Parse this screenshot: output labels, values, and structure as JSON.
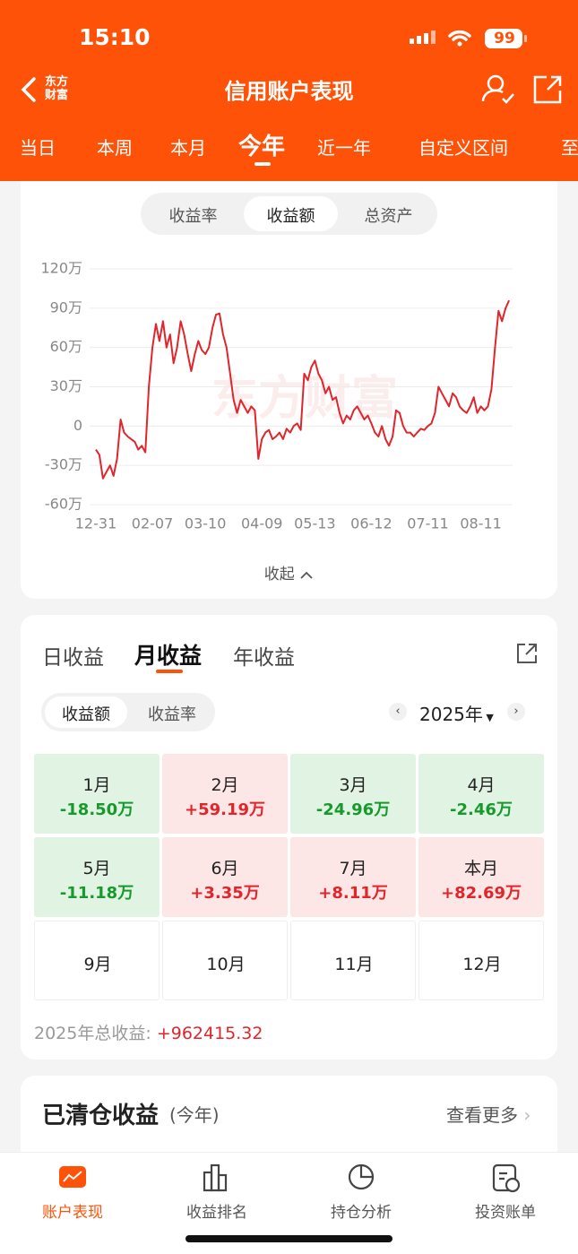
{
  "status_bar": {
    "time": "15:10",
    "battery": "99"
  },
  "nav": {
    "logo": "东方财富",
    "title": "信用账户表现"
  },
  "period_tabs": {
    "items": [
      "当日",
      "本周",
      "本月",
      "今年",
      "近一年",
      "自定义区间",
      "至"
    ],
    "active": 3
  },
  "metric_toggle": {
    "items": [
      "收益率",
      "收益额",
      "总资产"
    ],
    "active": 1
  },
  "chart_data": {
    "type": "line",
    "watermark": "东方财富",
    "x": [
      0,
      1,
      2,
      3,
      4,
      5,
      6,
      7,
      8,
      9,
      10,
      11,
      12,
      13,
      14,
      15,
      16,
      17,
      18,
      19,
      20,
      21,
      22,
      23,
      24,
      25,
      26,
      27,
      28,
      29,
      30,
      31,
      32,
      33,
      34,
      35,
      36,
      37,
      38,
      39,
      40,
      41,
      42,
      43,
      44,
      45,
      46,
      47,
      48,
      49,
      50,
      51,
      52,
      53,
      54,
      55,
      56,
      57,
      58,
      59,
      60,
      61,
      62,
      63,
      64,
      65,
      66,
      67,
      68,
      69,
      70,
      71,
      72,
      73,
      74,
      75,
      76,
      77,
      78,
      79,
      80,
      81,
      82,
      83,
      84,
      85,
      86,
      87,
      88,
      89,
      90,
      91,
      92,
      93,
      94,
      95,
      96,
      97,
      98,
      99,
      100,
      101,
      102,
      103,
      104,
      105,
      106,
      107,
      108,
      109,
      110,
      111,
      112,
      113,
      114,
      115,
      116,
      117
    ],
    "series": [
      {
        "color": "#e0252b",
        "values": [
          -18,
          -22,
          -40,
          -35,
          -30,
          -38,
          -25,
          5,
          -5,
          -8,
          -10,
          -12,
          -18,
          -15,
          -20,
          30,
          60,
          78,
          65,
          80,
          60,
          70,
          48,
          60,
          80,
          70,
          55,
          42,
          55,
          65,
          58,
          55,
          60,
          75,
          85,
          86,
          70,
          60,
          40,
          20,
          10,
          20,
          15,
          10,
          15,
          12,
          -25,
          -10,
          -5,
          -3,
          -10,
          -8,
          -5,
          -10,
          -2,
          -5,
          0,
          2,
          -3,
          40,
          35,
          45,
          50,
          40,
          35,
          25,
          30,
          20,
          22,
          10,
          2,
          8,
          5,
          12,
          15,
          10,
          5,
          8,
          2,
          -5,
          -8,
          0,
          -10,
          -15,
          -8,
          12,
          10,
          0,
          -5,
          -5,
          -8,
          -5,
          -2,
          -3,
          0,
          2,
          10,
          30,
          25,
          20,
          15,
          25,
          22,
          15,
          12,
          10,
          15,
          22,
          10,
          15,
          12,
          15,
          28,
          60,
          88,
          80,
          90,
          96
        ]
      }
    ],
    "xlim": [
      0,
      119
    ],
    "xticks": [
      {
        "value": 0,
        "label": "12-31"
      },
      {
        "value": 16,
        "label": "02-07"
      },
      {
        "value": 31,
        "label": "03-10"
      },
      {
        "value": 47,
        "label": "04-09"
      },
      {
        "value": 62,
        "label": "05-13"
      },
      {
        "value": 78,
        "label": "06-12"
      },
      {
        "value": 94,
        "label": "07-11"
      },
      {
        "value": 109,
        "label": "08-11"
      }
    ],
    "ylim": [
      -60,
      120
    ],
    "yticks": [
      {
        "value": 120,
        "label": "120万"
      },
      {
        "value": 90,
        "label": "90万"
      },
      {
        "value": 60,
        "label": "60万"
      },
      {
        "value": 30,
        "label": "30万"
      },
      0,
      {
        "value": -30,
        "label": "-30万"
      },
      {
        "value": -60,
        "label": "-60万"
      }
    ],
    "grid": true
  },
  "collapse": "收起",
  "income": {
    "tabs": {
      "items": [
        "日收益",
        "月收益",
        "年收益"
      ],
      "active": 1
    },
    "toggle": {
      "items": [
        "收益额",
        "收益率"
      ],
      "active": 0
    },
    "year": "2025年",
    "months": [
      {
        "label": "1月",
        "value": "-18.50万"
      },
      {
        "label": "2月",
        "value": "+59.19万"
      },
      {
        "label": "3月",
        "value": "-24.96万"
      },
      {
        "label": "4月",
        "value": "-2.46万"
      },
      {
        "label": "5月",
        "value": "-11.18万"
      },
      {
        "label": "6月",
        "value": "+3.35万"
      },
      {
        "label": "7月",
        "value": "+8.11万"
      },
      {
        "label": "本月",
        "value": "+82.69万"
      },
      {
        "label": "9月"
      },
      {
        "label": "10月"
      },
      {
        "label": "11月"
      },
      {
        "label": "12月"
      }
    ],
    "total_label": "2025年总收益:",
    "total_value": "+962415.32"
  },
  "cleared": {
    "title": "已清仓收益",
    "subtitle": "(今年)",
    "more": "查看更多"
  },
  "tab_bar": {
    "items": [
      "账户表现",
      "收益排名",
      "持仓分析",
      "投资账单"
    ],
    "active": 0
  }
}
